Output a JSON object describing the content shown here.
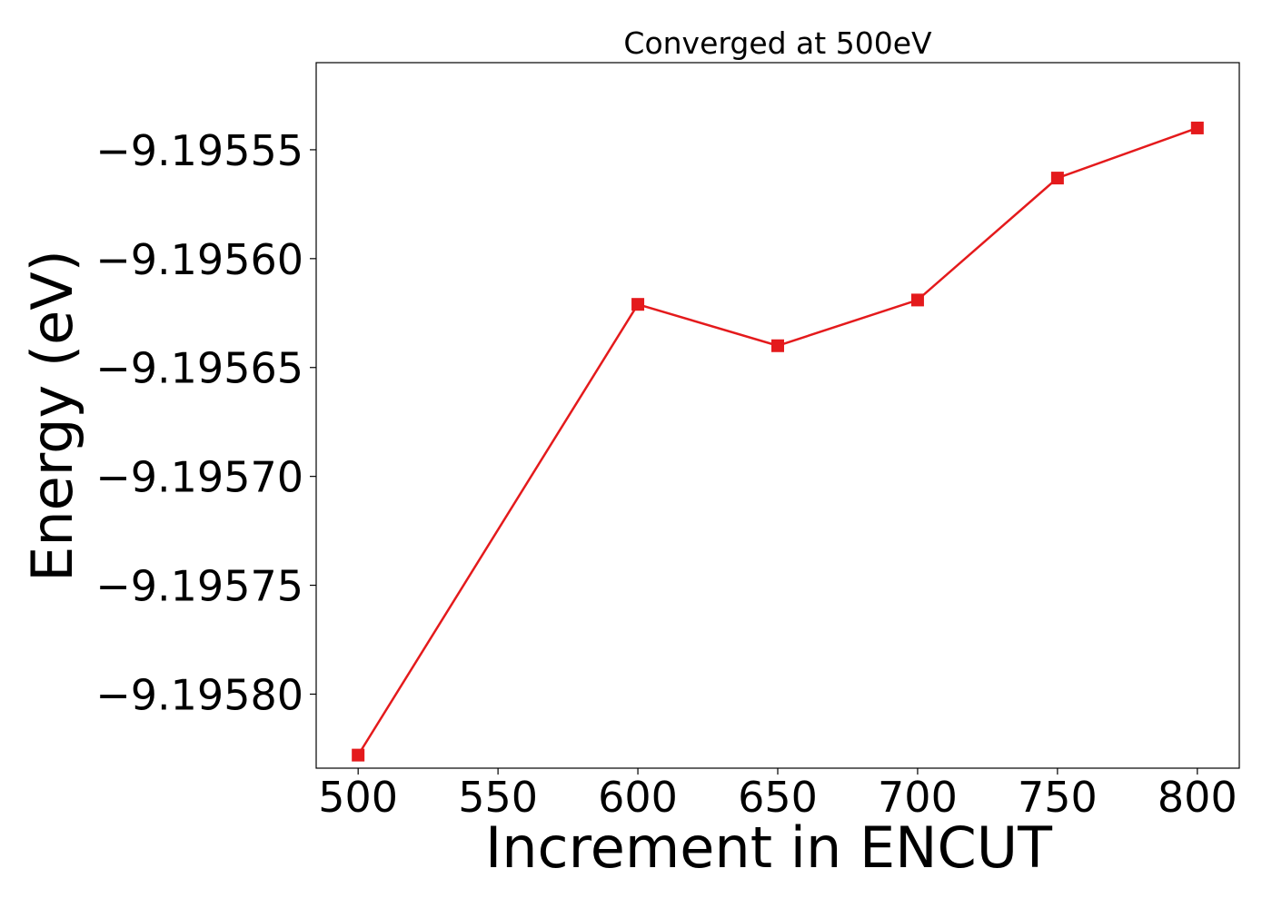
{
  "chart_data": {
    "type": "line",
    "title": "Converged at 500eV",
    "xlabel": "Increment in ENCUT",
    "ylabel": "Energy (eV)",
    "x": [
      500,
      600,
      650,
      700,
      750,
      800
    ],
    "series": [
      {
        "values": [
          -9.195828,
          -9.195621,
          -9.19564,
          -9.195619,
          -9.195563,
          -9.19554
        ],
        "color": "#e41a1c",
        "marker": "square"
      }
    ],
    "xticks": [
      500,
      550,
      600,
      650,
      700,
      750,
      800
    ],
    "xtick_labels": [
      "500",
      "550",
      "600",
      "650",
      "700",
      "750",
      "800"
    ],
    "yticks": [
      -9.19555,
      -9.1956,
      -9.19565,
      -9.1957,
      -9.19575,
      -9.1958
    ],
    "ytick_labels": [
      "−9.19555",
      "−9.19560",
      "−9.19565",
      "−9.19570",
      "−9.19575",
      "−9.19580"
    ],
    "xlim": [
      485,
      815
    ],
    "ylim": [
      -9.195834,
      -9.19551
    ],
    "grid": false,
    "legend": false
  }
}
